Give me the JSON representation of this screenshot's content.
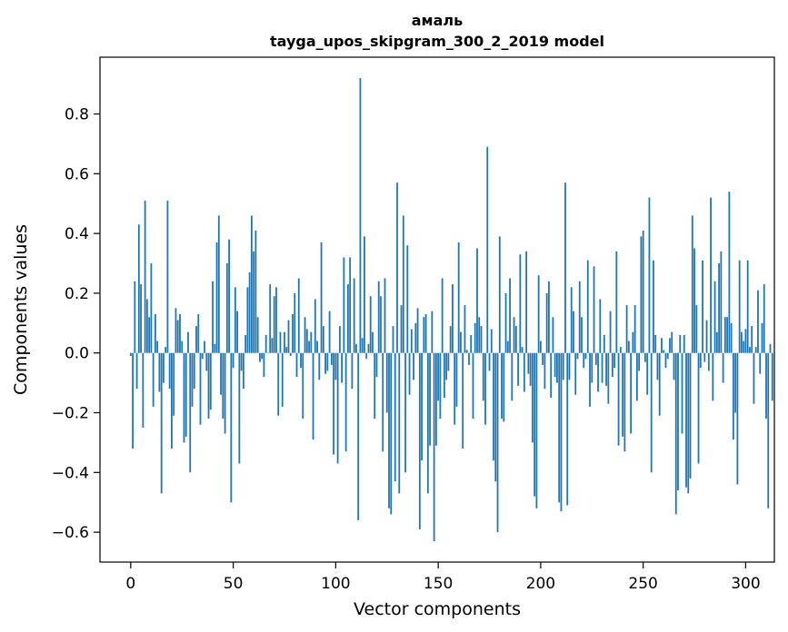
{
  "chart_data": {
    "type": "bar",
    "title": "амаль",
    "subtitle": "tayga_upos_skipgram_300_2_2019 model",
    "xlabel": "Vector components",
    "ylabel": "Components values",
    "xlim": [
      -15,
      314
    ],
    "ylim": [
      -0.7,
      0.99
    ],
    "xticks": [
      0,
      50,
      100,
      150,
      200,
      250,
      300
    ],
    "xtick_labels": [
      "0",
      "50",
      "100",
      "150",
      "200",
      "250",
      "300"
    ],
    "yticks": [
      -0.6,
      -0.4,
      -0.2,
      0.0,
      0.2,
      0.4,
      0.6,
      0.8
    ],
    "ytick_labels": [
      "−0.6",
      "−0.4",
      "−0.2",
      "0.0",
      "0.2",
      "0.4",
      "0.6",
      "0.8"
    ],
    "grid": false,
    "bar_color": "#1f77b4",
    "x_start": 0,
    "values": [
      -0.01,
      -0.32,
      0.24,
      -0.12,
      0.43,
      0.23,
      -0.25,
      0.51,
      0.18,
      0.12,
      0.3,
      -0.18,
      0.13,
      0.04,
      -0.13,
      -0.47,
      -0.1,
      0.02,
      0.51,
      -0.12,
      -0.32,
      -0.21,
      0.15,
      0.11,
      0.13,
      0.04,
      -0.3,
      -0.28,
      0.07,
      -0.4,
      -0.18,
      -0.12,
      0.09,
      0.13,
      -0.24,
      -0.02,
      0.04,
      -0.06,
      -0.22,
      -0.19,
      0.24,
      0.03,
      0.37,
      0.46,
      -0.14,
      -0.22,
      -0.27,
      0.3,
      0.38,
      -0.5,
      -0.05,
      0.22,
      0.14,
      -0.37,
      -0.06,
      -0.12,
      0.06,
      0.22,
      0.27,
      0.46,
      0.34,
      0.41,
      0.12,
      -0.03,
      -0.02,
      -0.08,
      0.06,
      0.0,
      0.23,
      0.05,
      0.19,
      0.22,
      -0.21,
      0.07,
      -0.18,
      0.07,
      0.02,
      0.11,
      -0.01,
      0.13,
      0.2,
      -0.08,
      0.25,
      -0.05,
      -0.22,
      0.12,
      0.08,
      0.04,
      0.07,
      -0.29,
      0.18,
      0.04,
      -0.09,
      0.37,
      0.09,
      -0.07,
      -0.06,
      0.14,
      -0.04,
      -0.34,
      -0.09,
      -0.37,
      0.09,
      -0.1,
      0.32,
      -0.33,
      0.23,
      0.32,
      -0.12,
      0.25,
      0.03,
      -0.56,
      0.92,
      0.05,
      0.39,
      -0.02,
      0.03,
      0.19,
      0.07,
      -0.22,
      -0.08,
      0.24,
      0.19,
      -0.33,
      0.25,
      -0.2,
      -0.52,
      -0.54,
      0.09,
      -0.43,
      0.57,
      -0.47,
      0.16,
      0.46,
      -0.4,
      0.36,
      -0.14,
      0.08,
      -0.09,
      0.1,
      0.15,
      -0.59,
      -0.36,
      0.12,
      0.13,
      -0.47,
      -0.31,
      0.14,
      -0.63,
      -0.31,
      -0.16,
      -0.22,
      0.25,
      -0.15,
      -0.09,
      -0.06,
      0.09,
      0.23,
      -0.24,
      -0.18,
      0.37,
      0.07,
      -0.32,
      0.16,
      0.01,
      -0.04,
      0.06,
      -0.22,
      0.1,
      0.35,
      0.12,
      0.09,
      -0.16,
      -0.24,
      0.69,
      -0.06,
      0.08,
      -0.36,
      -0.43,
      -0.6,
      0.39,
      -0.22,
      -0.23,
      0.2,
      0.04,
      0.25,
      -0.16,
      0.12,
      0.09,
      -0.11,
      0.33,
      0.02,
      -0.13,
      0.34,
      -0.07,
      -0.11,
      -0.3,
      -0.48,
      -0.52,
      0.26,
      0.04,
      -0.04,
      -0.12,
      0.2,
      0.24,
      -0.15,
      0.12,
      -0.08,
      -0.1,
      -0.5,
      -0.53,
      -0.09,
      0.57,
      -0.51,
      -0.09,
      0.22,
      0.14,
      -0.14,
      -0.02,
      0.24,
      0.12,
      -0.05,
      -0.02,
      0.31,
      -0.18,
      -0.1,
      0.29,
      -0.04,
      -0.13,
      0.18,
      -0.1,
      0.06,
      -0.11,
      -0.17,
      0.14,
      -0.08,
      -0.05,
      0.34,
      -0.31,
      0.02,
      -0.28,
      -0.33,
      0.16,
      0.04,
      -0.27,
      0.07,
      0.16,
      -0.16,
      -0.06,
      0.39,
      0.41,
      -0.03,
      -0.14,
      0.52,
      -0.4,
      0.31,
      0.06,
      -0.09,
      -0.21,
      0.05,
      0.01,
      -0.05,
      -0.02,
      0.05,
      0.07,
      -0.09,
      -0.54,
      -0.46,
      0.06,
      -0.27,
      0.06,
      -0.45,
      -0.47,
      -0.42,
      0.46,
      0.35,
      0.16,
      -0.37,
      -0.05,
      0.31,
      -0.03,
      0.11,
      -0.06,
      0.52,
      -0.16,
      0.24,
      0.07,
      0.3,
      0.34,
      -0.1,
      0.12,
      0.12,
      0.54,
      0.1,
      -0.29,
      -0.2,
      -0.44,
      0.31,
      0.07,
      0.04,
      0.08,
      0.31,
      0.02,
      0.09,
      -0.17,
      0.02,
      0.21,
      -0.07,
      0.1,
      0.23,
      -0.22,
      -0.52,
      0.03,
      -0.16
    ]
  }
}
